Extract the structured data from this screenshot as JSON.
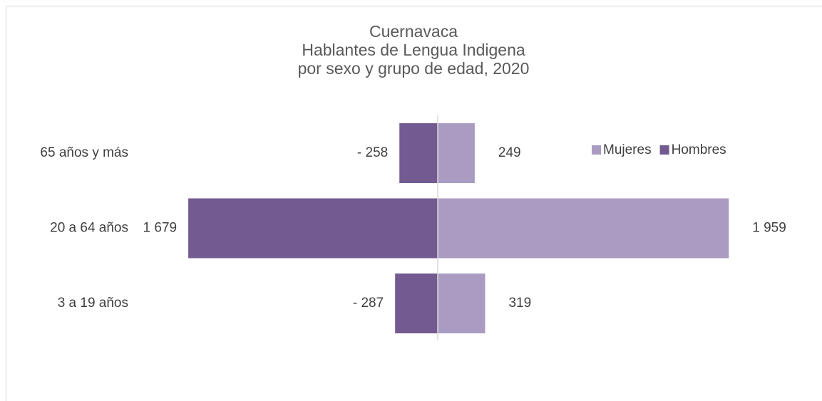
{
  "chart_data": {
    "type": "bar",
    "orientation": "horizontal",
    "stacked": true,
    "title": [
      "Cuernavaca",
      "Hablantes de Lengua Indigena",
      "por sexo y grupo de edad, 2020"
    ],
    "categories": [
      "65 años y más",
      "20 a 64 años",
      "3 a 19 años"
    ],
    "series": [
      {
        "name": "Mujeres",
        "color": "#a99bc1",
        "values": [
          249,
          1959,
          319
        ],
        "value_labels": [
          "249",
          "1 959",
          "319"
        ]
      },
      {
        "name": "Hombres",
        "color": "#735a91",
        "values": [
          -258,
          -1679,
          -287
        ],
        "value_labels": [
          "- 258",
          "1 679",
          "- 287"
        ]
      }
    ],
    "xlim": [
      -2500,
      2500
    ],
    "grid": false,
    "legend": "upper right"
  }
}
